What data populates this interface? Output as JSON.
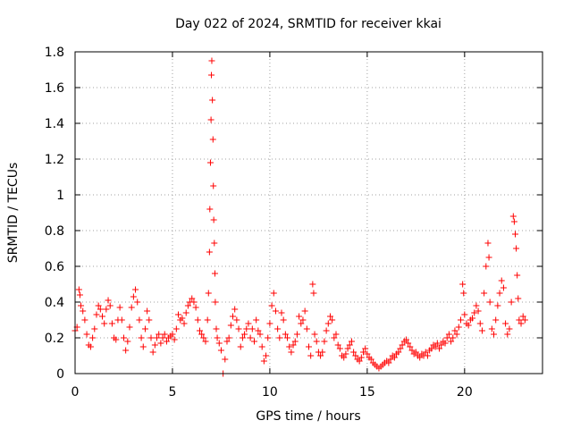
{
  "chart_data": {
    "type": "scatter",
    "title": "Day 022 of 2024, SRMTID for receiver kkai",
    "xlabel": "GPS time / hours",
    "ylabel": "SRMTID / TECUs",
    "xlim": [
      0,
      24
    ],
    "ylim": [
      0,
      1.8
    ],
    "x_ticks": [
      0,
      5,
      10,
      15,
      20
    ],
    "x_tick_labels": [
      "0",
      "5",
      "10",
      "15",
      "20"
    ],
    "y_ticks": [
      0,
      0.2,
      0.4,
      0.6,
      0.8,
      1,
      1.2,
      1.4,
      1.6,
      1.8
    ],
    "y_tick_labels": [
      "0",
      "0.2",
      "0.4",
      "0.6",
      "0.8",
      "1",
      "1.2",
      "1.4",
      "1.6",
      "1.8"
    ],
    "grid": true,
    "marker": "+",
    "marker_color": "#ff0000",
    "series": [
      {
        "name": "SRMTID",
        "points": [
          [
            0.0,
            0.24
          ],
          [
            0.1,
            0.26
          ],
          [
            0.2,
            0.47
          ],
          [
            0.25,
            0.44
          ],
          [
            0.3,
            0.38
          ],
          [
            0.4,
            0.35
          ],
          [
            0.5,
            0.3
          ],
          [
            0.6,
            0.22
          ],
          [
            0.7,
            0.16
          ],
          [
            0.8,
            0.15
          ],
          [
            0.9,
            0.2
          ],
          [
            1.0,
            0.25
          ],
          [
            1.1,
            0.33
          ],
          [
            1.2,
            0.38
          ],
          [
            1.3,
            0.36
          ],
          [
            1.4,
            0.32
          ],
          [
            1.5,
            0.28
          ],
          [
            1.6,
            0.36
          ],
          [
            1.7,
            0.41
          ],
          [
            1.8,
            0.38
          ],
          [
            1.9,
            0.28
          ],
          [
            2.0,
            0.2
          ],
          [
            2.1,
            0.19
          ],
          [
            2.2,
            0.3
          ],
          [
            2.3,
            0.37
          ],
          [
            2.4,
            0.3
          ],
          [
            2.5,
            0.2
          ],
          [
            2.6,
            0.13
          ],
          [
            2.7,
            0.18
          ],
          [
            2.8,
            0.26
          ],
          [
            2.9,
            0.37
          ],
          [
            3.0,
            0.43
          ],
          [
            3.1,
            0.47
          ],
          [
            3.2,
            0.4
          ],
          [
            3.3,
            0.3
          ],
          [
            3.4,
            0.2
          ],
          [
            3.5,
            0.15
          ],
          [
            3.6,
            0.25
          ],
          [
            3.7,
            0.35
          ],
          [
            3.8,
            0.3
          ],
          [
            3.9,
            0.2
          ],
          [
            4.0,
            0.12
          ],
          [
            4.1,
            0.16
          ],
          [
            4.2,
            0.2
          ],
          [
            4.3,
            0.22
          ],
          [
            4.4,
            0.17
          ],
          [
            4.5,
            0.2
          ],
          [
            4.6,
            0.22
          ],
          [
            4.7,
            0.18
          ],
          [
            4.8,
            0.2
          ],
          [
            4.9,
            0.21
          ],
          [
            5.0,
            0.22
          ],
          [
            5.1,
            0.19
          ],
          [
            5.2,
            0.25
          ],
          [
            5.3,
            0.33
          ],
          [
            5.4,
            0.3
          ],
          [
            5.5,
            0.31
          ],
          [
            5.6,
            0.28
          ],
          [
            5.7,
            0.34
          ],
          [
            5.8,
            0.38
          ],
          [
            5.9,
            0.4
          ],
          [
            6.0,
            0.42
          ],
          [
            6.1,
            0.4
          ],
          [
            6.2,
            0.37
          ],
          [
            6.3,
            0.3
          ],
          [
            6.4,
            0.24
          ],
          [
            6.5,
            0.22
          ],
          [
            6.6,
            0.2
          ],
          [
            6.7,
            0.18
          ],
          [
            6.8,
            0.3
          ],
          [
            6.85,
            0.45
          ],
          [
            6.9,
            0.68
          ],
          [
            6.92,
            0.92
          ],
          [
            6.95,
            1.18
          ],
          [
            6.98,
            1.42
          ],
          [
            7.0,
            1.67
          ],
          [
            7.02,
            1.75
          ],
          [
            7.05,
            1.53
          ],
          [
            7.08,
            1.31
          ],
          [
            7.1,
            1.05
          ],
          [
            7.12,
            0.86
          ],
          [
            7.15,
            0.73
          ],
          [
            7.18,
            0.56
          ],
          [
            7.2,
            0.4
          ],
          [
            7.25,
            0.25
          ],
          [
            7.3,
            0.2
          ],
          [
            7.4,
            0.17
          ],
          [
            7.5,
            0.13
          ],
          [
            7.6,
            0.0
          ],
          [
            7.7,
            0.08
          ],
          [
            7.8,
            0.18
          ],
          [
            7.9,
            0.2
          ],
          [
            8.0,
            0.27
          ],
          [
            8.1,
            0.32
          ],
          [
            8.2,
            0.36
          ],
          [
            8.3,
            0.3
          ],
          [
            8.4,
            0.25
          ],
          [
            8.5,
            0.15
          ],
          [
            8.6,
            0.2
          ],
          [
            8.7,
            0.22
          ],
          [
            8.8,
            0.25
          ],
          [
            8.9,
            0.28
          ],
          [
            9.0,
            0.2
          ],
          [
            9.1,
            0.25
          ],
          [
            9.2,
            0.18
          ],
          [
            9.3,
            0.3
          ],
          [
            9.4,
            0.24
          ],
          [
            9.5,
            0.22
          ],
          [
            9.6,
            0.15
          ],
          [
            9.7,
            0.07
          ],
          [
            9.8,
            0.1
          ],
          [
            9.9,
            0.2
          ],
          [
            10.0,
            0.28
          ],
          [
            10.1,
            0.38
          ],
          [
            10.2,
            0.45
          ],
          [
            10.3,
            0.35
          ],
          [
            10.4,
            0.25
          ],
          [
            10.5,
            0.2
          ],
          [
            10.6,
            0.34
          ],
          [
            10.7,
            0.3
          ],
          [
            10.8,
            0.22
          ],
          [
            10.9,
            0.2
          ],
          [
            11.0,
            0.15
          ],
          [
            11.1,
            0.12
          ],
          [
            11.2,
            0.16
          ],
          [
            11.3,
            0.18
          ],
          [
            11.4,
            0.22
          ],
          [
            11.5,
            0.32
          ],
          [
            11.6,
            0.28
          ],
          [
            11.7,
            0.3
          ],
          [
            11.8,
            0.35
          ],
          [
            11.9,
            0.25
          ],
          [
            12.0,
            0.15
          ],
          [
            12.1,
            0.1
          ],
          [
            12.2,
            0.5
          ],
          [
            12.25,
            0.45
          ],
          [
            12.3,
            0.22
          ],
          [
            12.4,
            0.18
          ],
          [
            12.5,
            0.12
          ],
          [
            12.6,
            0.1
          ],
          [
            12.7,
            0.12
          ],
          [
            12.8,
            0.18
          ],
          [
            12.9,
            0.24
          ],
          [
            13.0,
            0.28
          ],
          [
            13.1,
            0.32
          ],
          [
            13.2,
            0.3
          ],
          [
            13.3,
            0.2
          ],
          [
            13.4,
            0.22
          ],
          [
            13.5,
            0.16
          ],
          [
            13.6,
            0.14
          ],
          [
            13.7,
            0.1
          ],
          [
            13.8,
            0.09
          ],
          [
            13.9,
            0.11
          ],
          [
            14.0,
            0.14
          ],
          [
            14.1,
            0.16
          ],
          [
            14.2,
            0.18
          ],
          [
            14.3,
            0.12
          ],
          [
            14.4,
            0.1
          ],
          [
            14.5,
            0.08
          ],
          [
            14.6,
            0.07
          ],
          [
            14.7,
            0.09
          ],
          [
            14.8,
            0.12
          ],
          [
            14.9,
            0.14
          ],
          [
            15.0,
            0.11
          ],
          [
            15.1,
            0.09
          ],
          [
            15.2,
            0.08
          ],
          [
            15.3,
            0.06
          ],
          [
            15.4,
            0.05
          ],
          [
            15.5,
            0.04
          ],
          [
            15.6,
            0.03
          ],
          [
            15.7,
            0.04
          ],
          [
            15.8,
            0.05
          ],
          [
            15.9,
            0.06
          ],
          [
            16.0,
            0.07
          ],
          [
            16.1,
            0.06
          ],
          [
            16.2,
            0.08
          ],
          [
            16.3,
            0.1
          ],
          [
            16.4,
            0.09
          ],
          [
            16.5,
            0.11
          ],
          [
            16.6,
            0.12
          ],
          [
            16.7,
            0.14
          ],
          [
            16.8,
            0.16
          ],
          [
            16.9,
            0.18
          ],
          [
            17.0,
            0.19
          ],
          [
            17.1,
            0.17
          ],
          [
            17.2,
            0.15
          ],
          [
            17.3,
            0.13
          ],
          [
            17.4,
            0.11
          ],
          [
            17.5,
            0.12
          ],
          [
            17.6,
            0.1
          ],
          [
            17.7,
            0.09
          ],
          [
            17.8,
            0.11
          ],
          [
            17.9,
            0.1
          ],
          [
            18.0,
            0.12
          ],
          [
            18.1,
            0.1
          ],
          [
            18.2,
            0.13
          ],
          [
            18.3,
            0.14
          ],
          [
            18.4,
            0.16
          ],
          [
            18.5,
            0.15
          ],
          [
            18.6,
            0.17
          ],
          [
            18.7,
            0.14
          ],
          [
            18.8,
            0.16
          ],
          [
            18.9,
            0.18
          ],
          [
            19.0,
            0.17
          ],
          [
            19.1,
            0.2
          ],
          [
            19.2,
            0.22
          ],
          [
            19.3,
            0.18
          ],
          [
            19.4,
            0.2
          ],
          [
            19.5,
            0.24
          ],
          [
            19.6,
            0.22
          ],
          [
            19.7,
            0.26
          ],
          [
            19.8,
            0.3
          ],
          [
            19.9,
            0.5
          ],
          [
            19.95,
            0.45
          ],
          [
            20.0,
            0.33
          ],
          [
            20.1,
            0.28
          ],
          [
            20.2,
            0.27
          ],
          [
            20.3,
            0.3
          ],
          [
            20.4,
            0.31
          ],
          [
            20.5,
            0.34
          ],
          [
            20.6,
            0.38
          ],
          [
            20.7,
            0.35
          ],
          [
            20.8,
            0.28
          ],
          [
            20.9,
            0.24
          ],
          [
            21.0,
            0.45
          ],
          [
            21.1,
            0.6
          ],
          [
            21.2,
            0.73
          ],
          [
            21.25,
            0.65
          ],
          [
            21.3,
            0.4
          ],
          [
            21.4,
            0.25
          ],
          [
            21.5,
            0.22
          ],
          [
            21.6,
            0.3
          ],
          [
            21.7,
            0.38
          ],
          [
            21.8,
            0.45
          ],
          [
            21.9,
            0.52
          ],
          [
            22.0,
            0.48
          ],
          [
            22.1,
            0.28
          ],
          [
            22.2,
            0.22
          ],
          [
            22.3,
            0.25
          ],
          [
            22.4,
            0.4
          ],
          [
            22.5,
            0.88
          ],
          [
            22.55,
            0.85
          ],
          [
            22.6,
            0.78
          ],
          [
            22.65,
            0.7
          ],
          [
            22.7,
            0.55
          ],
          [
            22.75,
            0.42
          ],
          [
            22.8,
            0.3
          ],
          [
            22.9,
            0.28
          ],
          [
            23.0,
            0.32
          ],
          [
            23.1,
            0.3
          ]
        ]
      }
    ]
  }
}
